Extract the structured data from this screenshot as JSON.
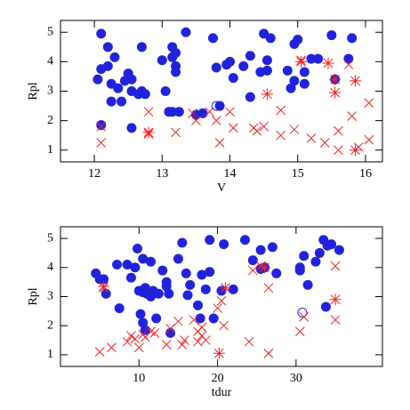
{
  "chart_data": [
    {
      "type": "scatter",
      "x_label": "V",
      "y_label": "Rpl",
      "xlim": [
        11.5,
        16.25
      ],
      "ylim": [
        0.6,
        5.4
      ],
      "xticks": [
        12,
        13,
        14,
        15,
        16
      ],
      "yticks": [
        1,
        2,
        3,
        4,
        5
      ],
      "series": [
        {
          "color": "#2222dd",
          "marker": "filled-circle",
          "x": [
            12.1,
            12.05,
            12.1,
            12.2,
            12.2,
            12.3,
            12.25,
            12.35,
            12.25,
            12.45,
            12.55,
            12.5,
            12.55,
            12.65,
            12.7,
            12.7,
            12.75,
            12.4,
            12.55,
            12.1,
            13.05,
            13.15,
            13.2,
            13.15,
            13.2,
            13.2,
            13.1,
            13.15,
            13.25,
            13.35,
            13.0,
            13.5,
            13.6,
            13.75,
            13.8,
            13.85,
            13.95,
            14.0,
            14.05,
            14.2,
            14.3,
            14.3,
            14.45,
            14.5,
            14.55,
            14.6,
            14.55,
            14.85,
            14.9,
            14.95,
            14.95,
            15.0,
            15.1,
            15.1,
            15.2,
            15.3,
            15.5,
            15.55,
            15.8,
            15.75
          ],
          "values": [
            4.95,
            3.4,
            3.75,
            3.85,
            4.5,
            4.15,
            3.25,
            3.1,
            2.65,
            3.35,
            3.0,
            3.6,
            3.4,
            2.9,
            3.0,
            4.5,
            2.9,
            2.65,
            1.75,
            1.85,
            3.0,
            4.5,
            4.3,
            4.15,
            3.85,
            3.65,
            2.3,
            2.3,
            2.3,
            5.0,
            4.05,
            2.2,
            2.25,
            4.8,
            3.8,
            2.5,
            3.9,
            4.0,
            3.45,
            3.85,
            2.8,
            4.2,
            3.65,
            4.95,
            4.05,
            4.8,
            3.7,
            3.7,
            3.1,
            3.35,
            4.6,
            4.75,
            3.25,
            3.65,
            4.1,
            4.1,
            4.9,
            3.4,
            4.8,
            4.1
          ]
        },
        {
          "color": "#2222dd",
          "marker": "open-circle",
          "x": [
            13.8
          ],
          "values": [
            2.5
          ]
        },
        {
          "color": "#ee2222",
          "marker": "x",
          "x": [
            12.1,
            12.1,
            12.8,
            12.8,
            13.2,
            13.5,
            13.45,
            13.7,
            13.8,
            13.85,
            14.05,
            14.0,
            14.35,
            14.4,
            14.5,
            14.75,
            14.75,
            14.95,
            15.2,
            15.4,
            15.6,
            15.6,
            15.75,
            15.8,
            15.9,
            16.05,
            16.05,
            15.05
          ],
          "values": [
            1.8,
            1.25,
            1.55,
            2.3,
            1.6,
            2.0,
            2.25,
            2.3,
            2.0,
            1.25,
            1.75,
            2.3,
            1.75,
            1.65,
            1.8,
            2.35,
            1.5,
            1.7,
            1.4,
            1.25,
            1.0,
            1.65,
            3.9,
            2.15,
            1.1,
            1.35,
            2.6,
            4.05
          ]
        },
        {
          "color": "#ee2222",
          "marker": "asterisk",
          "x": [
            14.55,
            15.45,
            15.55,
            15.55,
            15.85,
            15.85,
            15.05,
            12.8
          ],
          "values": [
            2.9,
            3.95,
            2.95,
            3.4,
            3.35,
            1.0,
            4.0,
            1.6
          ]
        }
      ]
    },
    {
      "type": "scatter",
      "x_label": "tdur",
      "y_label": "Rpl",
      "xlim": [
        0,
        41
      ],
      "ylim": [
        0.6,
        5.4
      ],
      "xticks": [
        10,
        20,
        30
      ],
      "yticks": [
        1,
        2,
        3,
        4,
        5
      ],
      "series": [
        {
          "color": "#2222dd",
          "marker": "filled-circle",
          "x": [
            4.5,
            5.0,
            5.5,
            5.8,
            7.2,
            7.5,
            8.5,
            9.0,
            9.5,
            9.8,
            10.0,
            10.2,
            10.5,
            10.5,
            10.8,
            10.5,
            10.8,
            11.0,
            11.5,
            11.5,
            11.8,
            12.2,
            12.5,
            13.0,
            13.5,
            13.5,
            13.8,
            14.0,
            15.0,
            15.5,
            16.0,
            16.2,
            16.5,
            17.5,
            17.8,
            18.0,
            18.5,
            19.0,
            19.0,
            19.5,
            20.5,
            20.8,
            22.0,
            23.5,
            24.5,
            25.5,
            25.5,
            26.0,
            27.0,
            27.5,
            30.5,
            30.5,
            31.0,
            31.5,
            32.5,
            33.0,
            33.5,
            33.8,
            34.0,
            34.5,
            35.5
          ],
          "values": [
            3.8,
            3.6,
            3.6,
            3.1,
            4.1,
            2.6,
            4.1,
            3.65,
            4.0,
            4.65,
            3.2,
            2.4,
            3.15,
            2.1,
            1.85,
            4.3,
            3.3,
            3.1,
            3.0,
            4.2,
            3.2,
            2.25,
            3.1,
            3.9,
            3.5,
            3.35,
            3.1,
            1.75,
            4.3,
            4.85,
            3.8,
            3.05,
            3.4,
            2.7,
            2.25,
            3.75,
            3.25,
            3.85,
            4.95,
            2.25,
            3.2,
            4.8,
            3.25,
            4.95,
            4.25,
            4.6,
            3.95,
            4.0,
            4.7,
            3.8,
            4.0,
            3.9,
            4.4,
            3.4,
            4.2,
            4.5,
            4.95,
            2.65,
            4.75,
            4.8,
            4.6
          ]
        },
        {
          "color": "#2222dd",
          "marker": "open-circle",
          "x": [
            30.8
          ],
          "values": [
            2.45
          ]
        },
        {
          "color": "#ee2222",
          "marker": "x",
          "x": [
            5.0,
            5.5,
            6.5,
            8.5,
            9.0,
            9.5,
            10.0,
            10.5,
            10.8,
            11.5,
            12.0,
            13.5,
            14.0,
            15.0,
            15.5,
            15.8,
            17.0,
            17.5,
            17.5,
            18.0,
            18.0,
            18.5,
            20.0,
            20.5,
            20.8,
            21.0,
            24.0,
            24.5,
            25.5,
            26.5,
            26.5,
            30.5,
            31.0,
            35.0,
            35.0
          ],
          "values": [
            1.1,
            3.3,
            1.25,
            1.45,
            1.65,
            1.55,
            1.25,
            1.7,
            1.6,
            1.8,
            1.75,
            1.35,
            1.9,
            2.15,
            1.35,
            1.5,
            2.2,
            1.8,
            1.45,
            1.95,
            1.65,
            1.5,
            2.6,
            2.85,
            2.0,
            3.3,
            1.45,
            3.9,
            4.05,
            3.3,
            1.05,
            1.8,
            2.3,
            4.05,
            2.2
          ]
        },
        {
          "color": "#ee2222",
          "marker": "asterisk",
          "x": [
            5.5,
            20.2,
            26.0,
            35.0,
            21.0
          ],
          "values": [
            3.35,
            1.05,
            4.0,
            2.9,
            3.3
          ]
        }
      ]
    }
  ]
}
